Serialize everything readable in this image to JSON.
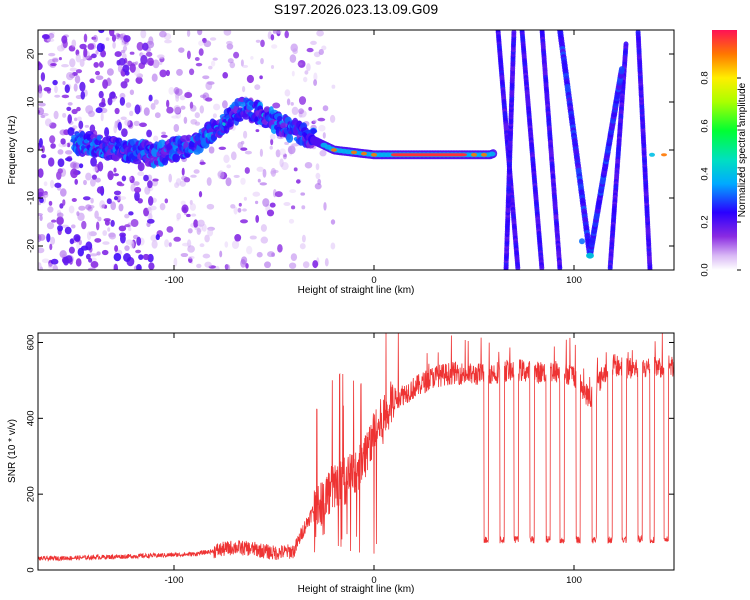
{
  "title": "S197.2026.023.13.09.G09",
  "chart_data": [
    {
      "type": "heatmap",
      "title": "S197.2026.023.13.09.G09",
      "xlabel": "Height of straight line (km)",
      "ylabel": "Frequency (Hz)",
      "xlim": [
        -168,
        150
      ],
      "ylim": [
        -25,
        25
      ],
      "xticks": [
        -100,
        0,
        100
      ],
      "yticks": [
        -20,
        -10,
        0,
        10,
        20
      ],
      "ridge_description": "Main spectral ridge: noisy near 0 Hz below -80 km, rising to ~6 Hz around -50 km, narrowing to a strong line at 0 Hz from -30 km to 60 km; beyond 65 km multiple ghost lines and a V-shaped track dipping to -22 Hz near 108 km.",
      "ridge_points": [
        {
          "x": -140,
          "y": 1
        },
        {
          "x": -110,
          "y": -1
        },
        {
          "x": -90,
          "y": 1
        },
        {
          "x": -80,
          "y": 4
        },
        {
          "x": -65,
          "y": 9
        },
        {
          "x": -50,
          "y": 6
        },
        {
          "x": -40,
          "y": 4
        },
        {
          "x": -30,
          "y": 2
        },
        {
          "x": -20,
          "y": 0
        },
        {
          "x": 0,
          "y": -1
        },
        {
          "x": 30,
          "y": -1
        },
        {
          "x": 58,
          "y": -1
        },
        {
          "x": 95,
          "y": 5
        },
        {
          "x": 108,
          "y": -22
        },
        {
          "x": 125,
          "y": 10
        },
        {
          "x": 140,
          "y": -1
        }
      ],
      "colorbar": {
        "label": "Normalized spectral amplitude",
        "range": [
          0.0,
          1.0
        ],
        "ticks": [
          0.0,
          0.2,
          0.4,
          0.6,
          0.8
        ]
      }
    },
    {
      "type": "line",
      "xlabel": "Height of straight line (km)",
      "ylabel": "SNR (10 * v/v)",
      "xlim": [
        -168,
        150
      ],
      "ylim": [
        0,
        625
      ],
      "xticks": [
        -100,
        0,
        100
      ],
      "yticks": [
        0,
        200,
        400,
        600
      ],
      "color": "#ee3333",
      "series": [
        {
          "name": "SNR",
          "x": [
            -168,
            -150,
            -130,
            -110,
            -90,
            -80,
            -70,
            -60,
            -50,
            -40,
            -35,
            -30,
            -20,
            -10,
            -5,
            0,
            5,
            10,
            20,
            30,
            40,
            50,
            60,
            70,
            80,
            90,
            100,
            108,
            115,
            120,
            130,
            140,
            150
          ],
          "y": [
            30,
            32,
            35,
            38,
            42,
            50,
            60,
            55,
            45,
            50,
            110,
            160,
            220,
            250,
            300,
            360,
            400,
            450,
            480,
            510,
            520,
            515,
            520,
            530,
            520,
            525,
            515,
            450,
            520,
            540,
            530,
            535,
            540
          ]
        }
      ],
      "dropouts": {
        "x": [
          55,
          63,
          70,
          78,
          86,
          93,
          101,
          109,
          117,
          124,
          132,
          138,
          145
        ],
        "low_value": 80
      }
    }
  ],
  "axes": {
    "top_xlabel": "Height of straight line (km)",
    "top_ylabel": "Frequency (Hz)",
    "bottom_xlabel": "Height of straight line (km)",
    "bottom_ylabel": "SNR (10 * v/v)",
    "colorbar_label": "Normalized spectral amplitude"
  }
}
